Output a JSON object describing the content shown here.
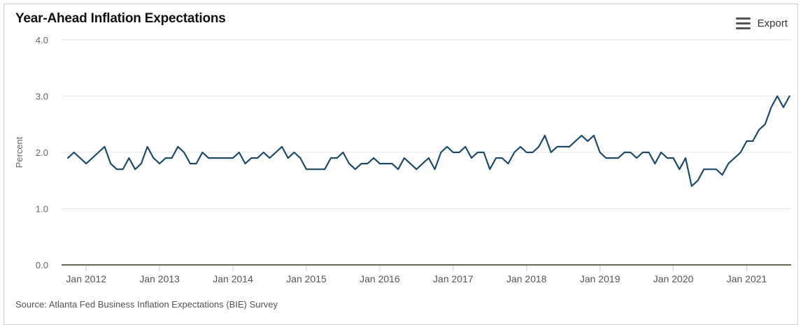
{
  "header": {
    "title": "Year-Ahead Inflation Expectations",
    "export_label": "Export",
    "export_icon": "menu-icon"
  },
  "footer": {
    "source": "Source: Atlanta Fed Business Inflation Expectations (BIE) Survey"
  },
  "colors": {
    "line": "#1d4a6b",
    "gridline": "#e6e6e6",
    "baseline": "#6b6652"
  },
  "chart_data": {
    "type": "line",
    "title": "Year-Ahead Inflation Expectations",
    "xlabel": "",
    "ylabel": "Percent",
    "ylim": [
      0,
      4
    ],
    "yticks": [
      0,
      1,
      2,
      3,
      4
    ],
    "ytick_labels": [
      "0.0",
      "1.0",
      "2.0",
      "3.0",
      "4.0"
    ],
    "x_start": "2011-10",
    "x_end": "2021-08",
    "xticks": [
      "2012-01",
      "2013-01",
      "2014-01",
      "2015-01",
      "2016-01",
      "2017-01",
      "2018-01",
      "2019-01",
      "2020-01",
      "2021-01"
    ],
    "xtick_labels": [
      "Jan 2012",
      "Jan 2013",
      "Jan 2014",
      "Jan 2015",
      "Jan 2016",
      "Jan 2017",
      "Jan 2018",
      "Jan 2019",
      "Jan 2020",
      "Jan 2021"
    ],
    "grid": true,
    "legend": "none",
    "series": [
      {
        "x": [
          "2011-10",
          "2011-11",
          "2011-12",
          "2012-01",
          "2012-02",
          "2012-03",
          "2012-04",
          "2012-05",
          "2012-06",
          "2012-07",
          "2012-08",
          "2012-09",
          "2012-10",
          "2012-11",
          "2012-12",
          "2013-01",
          "2013-02",
          "2013-03",
          "2013-04",
          "2013-05",
          "2013-06",
          "2013-07",
          "2013-08",
          "2013-09",
          "2013-10",
          "2013-11",
          "2013-12",
          "2014-01",
          "2014-02",
          "2014-03",
          "2014-04",
          "2014-05",
          "2014-06",
          "2014-07",
          "2014-08",
          "2014-09",
          "2014-10",
          "2014-11",
          "2014-12",
          "2015-01",
          "2015-02",
          "2015-03",
          "2015-04",
          "2015-05",
          "2015-06",
          "2015-07",
          "2015-08",
          "2015-09",
          "2015-10",
          "2015-11",
          "2015-12",
          "2016-01",
          "2016-02",
          "2016-03",
          "2016-04",
          "2016-05",
          "2016-06",
          "2016-07",
          "2016-08",
          "2016-09",
          "2016-10",
          "2016-11",
          "2016-12",
          "2017-01",
          "2017-02",
          "2017-03",
          "2017-04",
          "2017-05",
          "2017-06",
          "2017-07",
          "2017-08",
          "2017-09",
          "2017-10",
          "2017-11",
          "2017-12",
          "2018-01",
          "2018-02",
          "2018-03",
          "2018-04",
          "2018-05",
          "2018-06",
          "2018-07",
          "2018-08",
          "2018-09",
          "2018-10",
          "2018-11",
          "2018-12",
          "2019-01",
          "2019-02",
          "2019-03",
          "2019-04",
          "2019-05",
          "2019-06",
          "2019-07",
          "2019-08",
          "2019-09",
          "2019-10",
          "2019-11",
          "2019-12",
          "2020-01",
          "2020-02",
          "2020-03",
          "2020-04",
          "2020-05",
          "2020-06",
          "2020-07",
          "2020-08",
          "2020-09",
          "2020-10",
          "2020-11",
          "2020-12",
          "2021-01",
          "2021-02",
          "2021-03",
          "2021-04",
          "2021-05",
          "2021-06",
          "2021-07",
          "2021-08"
        ],
        "values": [
          1.9,
          2.0,
          1.9,
          1.8,
          1.9,
          2.0,
          2.1,
          1.8,
          1.7,
          1.7,
          1.9,
          1.7,
          1.8,
          2.1,
          1.9,
          1.8,
          1.9,
          1.9,
          2.1,
          2.0,
          1.8,
          1.8,
          2.0,
          1.9,
          1.9,
          1.9,
          1.9,
          1.9,
          2.0,
          1.8,
          1.9,
          1.9,
          2.0,
          1.9,
          2.0,
          2.1,
          1.9,
          2.0,
          1.9,
          1.7,
          1.7,
          1.7,
          1.7,
          1.9,
          1.9,
          2.0,
          1.8,
          1.7,
          1.8,
          1.8,
          1.9,
          1.8,
          1.8,
          1.8,
          1.7,
          1.9,
          1.8,
          1.7,
          1.8,
          1.9,
          1.7,
          2.0,
          2.1,
          2.0,
          2.0,
          2.1,
          1.9,
          2.0,
          2.0,
          1.7,
          1.9,
          1.9,
          1.8,
          2.0,
          2.1,
          2.0,
          2.0,
          2.1,
          2.3,
          2.0,
          2.1,
          2.1,
          2.1,
          2.2,
          2.3,
          2.2,
          2.3,
          2.0,
          1.9,
          1.9,
          1.9,
          2.0,
          2.0,
          1.9,
          2.0,
          2.0,
          1.8,
          2.0,
          1.9,
          1.9,
          1.7,
          1.9,
          1.4,
          1.5,
          1.7,
          1.7,
          1.7,
          1.6,
          1.8,
          1.9,
          2.0,
          2.2,
          2.2,
          2.4,
          2.5,
          2.8,
          3.0,
          2.8,
          3.0
        ]
      }
    ]
  }
}
